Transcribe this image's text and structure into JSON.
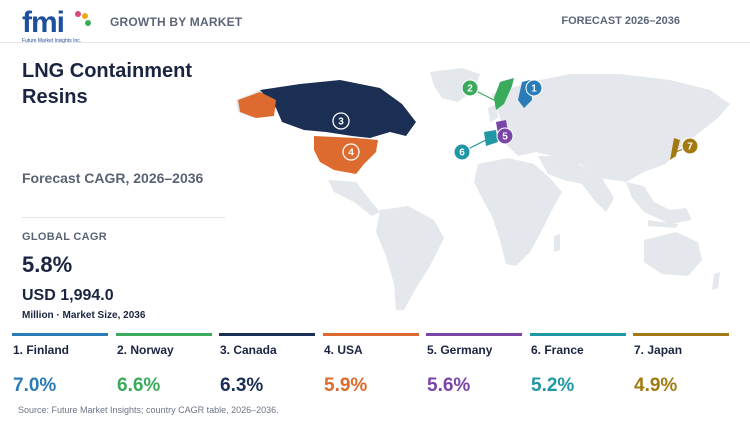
{
  "header": {
    "left": "GROWTH BY MARKET",
    "right": "FORECAST 2026–2036",
    "logo_text": "fmi",
    "logo_tagline": "Future Market Insights Inc."
  },
  "panel": {
    "title": "LNG Containment Resins",
    "subtitle": "Forecast CAGR, 2026–2036",
    "global_cagr_label": "GLOBAL CAGR",
    "global_cagr_value": "5.8%",
    "market_size_value": "USD 1,994.0",
    "market_size_label": "Million · Market Size, 2036"
  },
  "chart_data": {
    "type": "table",
    "title": "LNG Containment Resins",
    "subtitle": "Forecast CAGR, 2026–2036",
    "columns": [
      "rank",
      "country",
      "cagr_percent"
    ],
    "rows": [
      {
        "rank": "1",
        "label": "1. Finland",
        "country": "Finland",
        "cagr": 7.0,
        "display": "7.0%",
        "color": "#2b7bb9"
      },
      {
        "rank": "2",
        "label": "2. Norway",
        "country": "Norway",
        "cagr": 6.6,
        "display": "6.6%",
        "color": "#3aaa5c"
      },
      {
        "rank": "3",
        "label": "3. Canada",
        "country": "Canada",
        "cagr": 6.3,
        "display": "6.3%",
        "color": "#1b2f55"
      },
      {
        "rank": "4",
        "label": "4. USA",
        "country": "USA",
        "cagr": 5.9,
        "display": "5.9%",
        "color": "#dd6a2e"
      },
      {
        "rank": "5",
        "label": "5. Germany",
        "country": "Germany",
        "cagr": 5.6,
        "display": "5.6%",
        "color": "#7a45a6"
      },
      {
        "rank": "6",
        "label": "6. France",
        "country": "France",
        "cagr": 5.2,
        "display": "5.2%",
        "color": "#1f97a5"
      },
      {
        "rank": "7",
        "label": "7. Japan",
        "country": "Japan",
        "cagr": 4.9,
        "display": "4.9%",
        "color": "#a27a12"
      }
    ]
  },
  "colors": {
    "land": "#e4e7eb",
    "text_dark": "#1a2440",
    "text_muted": "#5a6374"
  },
  "source": "Source: Future Market Insights; country CAGR table, 2026–2036."
}
